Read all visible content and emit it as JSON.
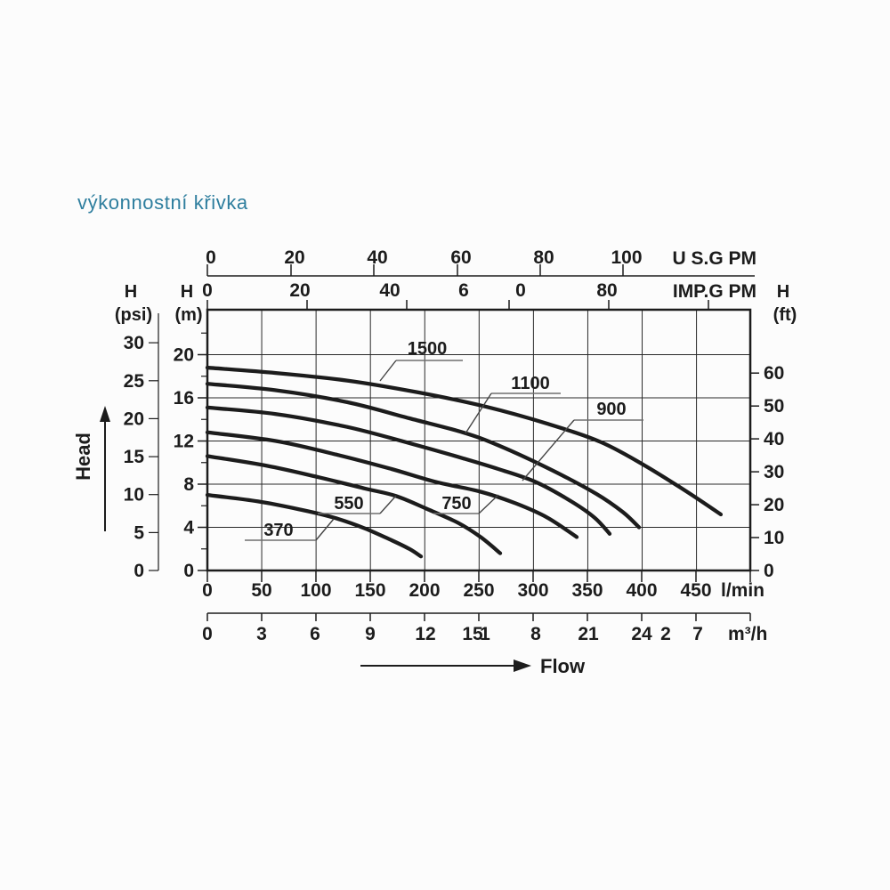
{
  "title": "výkonnostní křivka",
  "head_label": "Head",
  "flow_label": "Flow",
  "colors": {
    "title": "#2e7e9e",
    "ink": "#1c1c1c",
    "grid": "#2a2a2a",
    "leader": "#6e6e6e",
    "background": "#fcfcfc"
  },
  "chart_data": {
    "type": "line",
    "title": "výkonnostní křivka",
    "grid": true,
    "x_range_lmin": [
      0,
      500
    ],
    "y_range_m": [
      0,
      24.2
    ],
    "x_axes": [
      {
        "id": "us-gpm",
        "unit": "U S.G PM",
        "tick_labels": [
          "0",
          "20",
          "40",
          "60",
          "80",
          "100"
        ]
      },
      {
        "id": "imp-gpm",
        "unit": "IMP.G PM",
        "tick_labels": [
          "0",
          "20",
          "40",
          "6",
          "0",
          "80"
        ]
      },
      {
        "id": "l-min",
        "unit": "l/min",
        "tick_labels": [
          "0",
          "50",
          "100",
          "150",
          "200",
          "250",
          "300",
          "350",
          "400",
          "450"
        ]
      },
      {
        "id": "m3-h",
        "unit": "m³/h",
        "tick_labels": [
          "0",
          "3",
          "6",
          "9",
          "12",
          "15",
          "1",
          "8",
          "21",
          "24",
          "2",
          "7"
        ]
      }
    ],
    "y_axes": [
      {
        "id": "psi",
        "name": "H",
        "unit": "(psi)",
        "tick_labels": [
          "0",
          "5",
          "10",
          "15",
          "20",
          "25",
          "30"
        ]
      },
      {
        "id": "m",
        "name": "H",
        "unit": "(m)",
        "tick_labels": [
          "0",
          "4",
          "8",
          "12",
          "16",
          "20"
        ]
      },
      {
        "id": "ft",
        "name": "H",
        "unit": "(ft)",
        "tick_labels": [
          "0",
          "10",
          "20",
          "30",
          "40",
          "50",
          "60"
        ]
      }
    ],
    "series": [
      {
        "name": "370",
        "points": [
          [
            0,
            7.0
          ],
          [
            46.7,
            6.4
          ],
          [
            87.6,
            5.6
          ],
          [
            116.3,
            4.9
          ],
          [
            144.9,
            3.9
          ],
          [
            169.5,
            2.8
          ],
          [
            185.9,
            2.0
          ],
          [
            196.5,
            1.3
          ]
        ]
      },
      {
        "name": "550",
        "points": [
          [
            0,
            10.6
          ],
          [
            54.9,
            9.7
          ],
          [
            104.0,
            8.6
          ],
          [
            144.9,
            7.6
          ],
          [
            173.6,
            6.9
          ],
          [
            202.2,
            5.7
          ],
          [
            230.9,
            4.4
          ],
          [
            251.4,
            3.1
          ],
          [
            269.4,
            1.6
          ]
        ]
      },
      {
        "name": "750",
        "points": [
          [
            0,
            12.8
          ],
          [
            63.0,
            12.0
          ],
          [
            120.4,
            10.7
          ],
          [
            169.5,
            9.4
          ],
          [
            210.4,
            8.2
          ],
          [
            251.4,
            7.3
          ],
          [
            284.1,
            6.2
          ],
          [
            312.8,
            4.9
          ],
          [
            339.8,
            3.1
          ]
        ]
      },
      {
        "name": "900",
        "points": [
          [
            0,
            15.1
          ],
          [
            63.0,
            14.5
          ],
          [
            128.6,
            13.3
          ],
          [
            185.9,
            11.8
          ],
          [
            235.0,
            10.4
          ],
          [
            267.7,
            9.4
          ],
          [
            302.1,
            8.2
          ],
          [
            334.9,
            6.4
          ],
          [
            356.2,
            4.9
          ],
          [
            370.1,
            3.4
          ]
        ]
      },
      {
        "name": "1100",
        "points": [
          [
            0,
            17.3
          ],
          [
            63.0,
            16.7
          ],
          [
            128.6,
            15.6
          ],
          [
            185.9,
            14.1
          ],
          [
            235.0,
            12.8
          ],
          [
            267.7,
            11.6
          ],
          [
            316.9,
            9.3
          ],
          [
            357.8,
            7.1
          ],
          [
            382.4,
            5.4
          ],
          [
            397.1,
            4.0
          ]
        ]
      },
      {
        "name": "1500",
        "points": [
          [
            0,
            18.8
          ],
          [
            63.0,
            18.3
          ],
          [
            128.6,
            17.6
          ],
          [
            194.0,
            16.5
          ],
          [
            255.5,
            15.2
          ],
          [
            312.8,
            13.6
          ],
          [
            361.9,
            11.9
          ],
          [
            401.2,
            9.8
          ],
          [
            439.7,
            7.4
          ],
          [
            472.4,
            5.2
          ]
        ]
      }
    ]
  }
}
